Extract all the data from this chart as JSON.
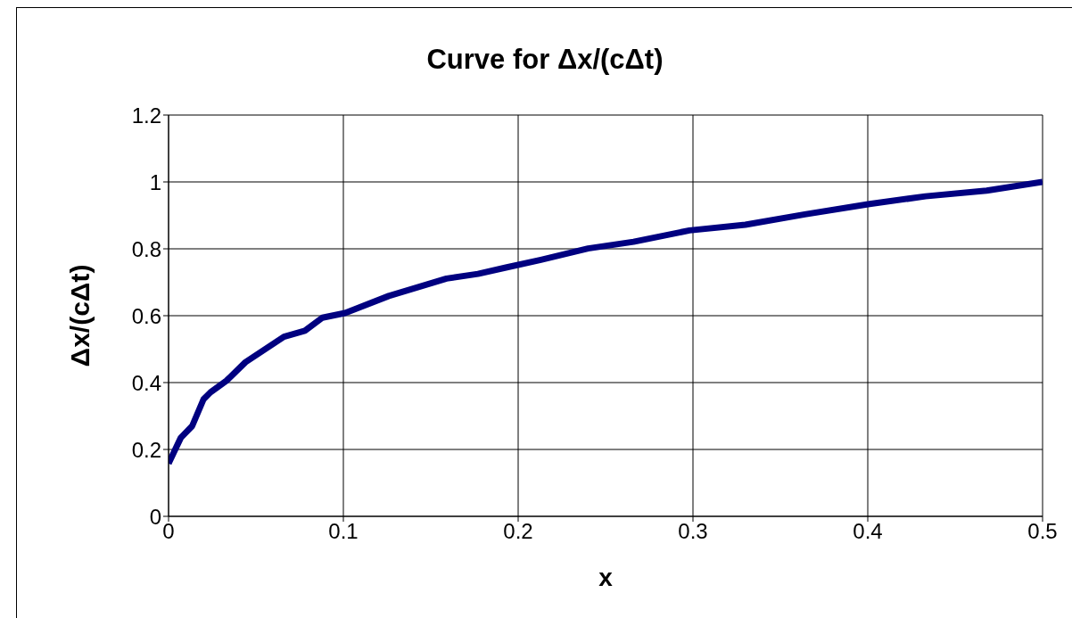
{
  "chart_data": {
    "type": "line",
    "title": "Curve for Δx/(cΔt)",
    "xlabel": "x",
    "ylabel": "Δx/(cΔt)",
    "x": [
      0,
      0.007,
      0.0135,
      0.02,
      0.024,
      0.033,
      0.044,
      0.066,
      0.078,
      0.088,
      0.101,
      0.126,
      0.159,
      0.177,
      0.193,
      0.213,
      0.24,
      0.266,
      0.298,
      0.33,
      0.364,
      0.401,
      0.433,
      0.468,
      0.5
    ],
    "series": [
      {
        "color": "#000080",
        "values": [
          0.158,
          0.235,
          0.27,
          0.35,
          0.371,
          0.405,
          0.461,
          0.537,
          0.555,
          0.594,
          0.608,
          0.659,
          0.711,
          0.725,
          0.744,
          0.767,
          0.801,
          0.821,
          0.855,
          0.872,
          0.903,
          0.934,
          0.957,
          0.974,
          1.0
        ]
      }
    ],
    "xlim": [
      0,
      0.5
    ],
    "xticks": [
      0,
      0.1,
      0.2,
      0.3,
      0.4,
      0.5
    ],
    "ylim": [
      0,
      1.2
    ],
    "yticks": [
      0,
      0.2,
      0.4,
      0.6,
      0.8,
      1,
      1.2
    ],
    "grid": true,
    "legend": false,
    "line_style": "solid",
    "marker": "none"
  }
}
